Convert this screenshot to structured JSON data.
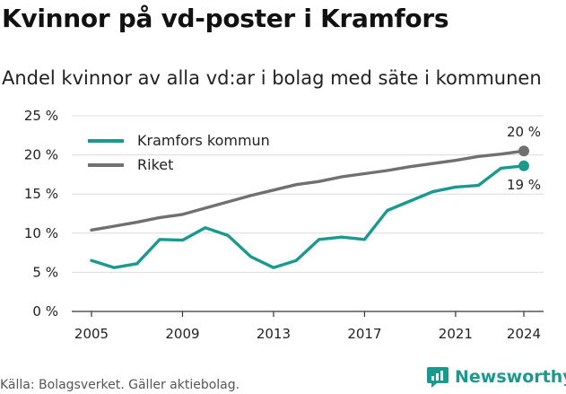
{
  "title": "Kvinnor på vd-poster i Kramfors",
  "subtitle": "Andel kvinnor av alla vd:ar i bolag med säte i kommunen",
  "source": "Källa: Bolagsverket. Gäller aktiebolag.",
  "brand": {
    "name": "Newsworthy",
    "icon": "newsworthy-logo-icon",
    "color": "#1a9a8e"
  },
  "chart_data": {
    "type": "line",
    "x": [
      2005,
      2006,
      2007,
      2008,
      2009,
      2010,
      2011,
      2012,
      2013,
      2014,
      2015,
      2016,
      2017,
      2018,
      2019,
      2020,
      2021,
      2022,
      2023,
      2024
    ],
    "series": [
      {
        "name": "Kramfors kommun",
        "color": "#1a9a8e",
        "values": [
          6.5,
          5.6,
          6.1,
          9.2,
          9.1,
          10.7,
          9.7,
          7.0,
          5.6,
          6.5,
          9.2,
          9.5,
          9.2,
          12.9,
          14.1,
          15.3,
          15.9,
          16.1,
          18.3,
          18.6
        ],
        "end_label": "19 %"
      },
      {
        "name": "Riket",
        "color": "#707070",
        "values": [
          10.4,
          10.9,
          11.4,
          12.0,
          12.4,
          13.2,
          14.0,
          14.8,
          15.5,
          16.2,
          16.6,
          17.2,
          17.6,
          18.0,
          18.5,
          18.9,
          19.3,
          19.8,
          20.1,
          20.5
        ],
        "end_label": "20 %"
      }
    ],
    "xticks": [
      "2005",
      "2009",
      "2013",
      "2017",
      "2021",
      "2024"
    ],
    "yticks": [
      "0 %",
      "5 %",
      "10 %",
      "15 %",
      "20 %",
      "25 %"
    ],
    "ylim": [
      0,
      25
    ],
    "xlim": [
      2005,
      2024
    ],
    "grid": true,
    "legend_position": "top-left"
  }
}
